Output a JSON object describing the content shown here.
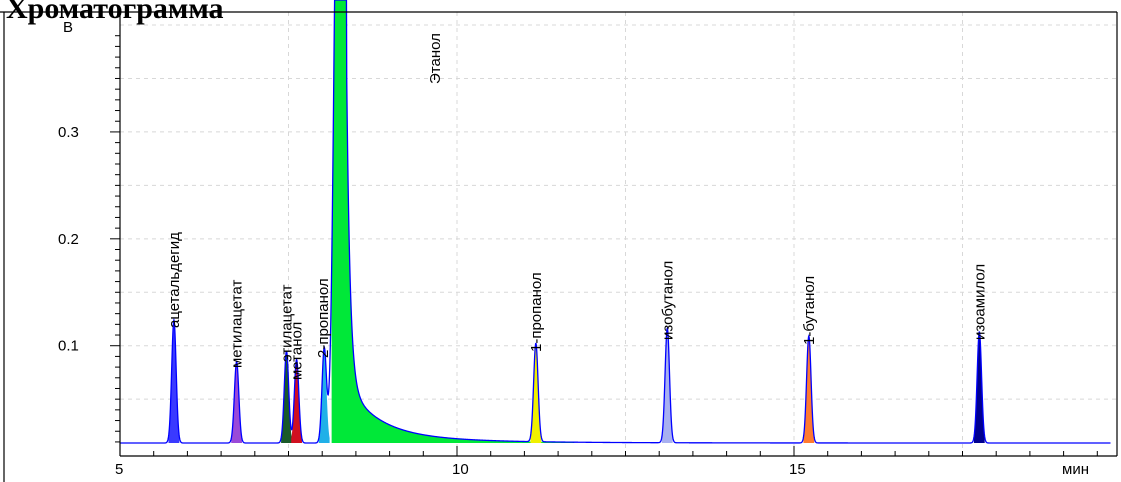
{
  "heading": "Хроматограмма",
  "chart_data": {
    "type": "line",
    "title": "",
    "ylabel": "В",
    "xlabel": "мин",
    "xlim": [
      5,
      19.7
    ],
    "ylim": [
      0.0,
      0.403
    ],
    "baseline": 0.009,
    "x_ticks": [
      5,
      10,
      15
    ],
    "x_tick_labels": [
      "5",
      "10",
      "15"
    ],
    "y_ticks": [
      0.1,
      0.2,
      0.3
    ],
    "y_tick_labels": [
      "0.1",
      "0.2",
      "0.3"
    ],
    "grid": true,
    "colors": {
      "line": "#0000ff",
      "axis": "#000000",
      "grid": "#d8d8d8"
    },
    "peaks": [
      {
        "name": "ацетальдегид",
        "rt": 5.8,
        "height": 0.115,
        "color": "#3a3aff"
      },
      {
        "name": "метилацетат",
        "rt": 6.73,
        "height": 0.076,
        "color": "#9a4ad8"
      },
      {
        "name": "этилацетат",
        "rt": 7.47,
        "height": 0.086,
        "color": "#1a5a2a"
      },
      {
        "name": "метанол",
        "rt": 7.62,
        "height": 0.078,
        "color": "#d01020"
      },
      {
        "name": "2-пропанол",
        "rt": 8.03,
        "height": 0.088,
        "color": "#20b0e8"
      },
      {
        "name": "Этанол",
        "rt": 8.24,
        "height": 0.65,
        "color": "#00e838"
      },
      {
        "name": "1-пропанол",
        "rt": 11.17,
        "height": 0.092,
        "color": "#f0f000"
      },
      {
        "name": "изобутанол",
        "rt": 13.12,
        "height": 0.107,
        "color": "#a8b0f0"
      },
      {
        "name": "1-бутанол",
        "rt": 15.22,
        "height": 0.1,
        "color": "#ff7a30"
      },
      {
        "name": "изоамилол",
        "rt": 17.75,
        "height": 0.104,
        "color": "#000090"
      }
    ]
  }
}
